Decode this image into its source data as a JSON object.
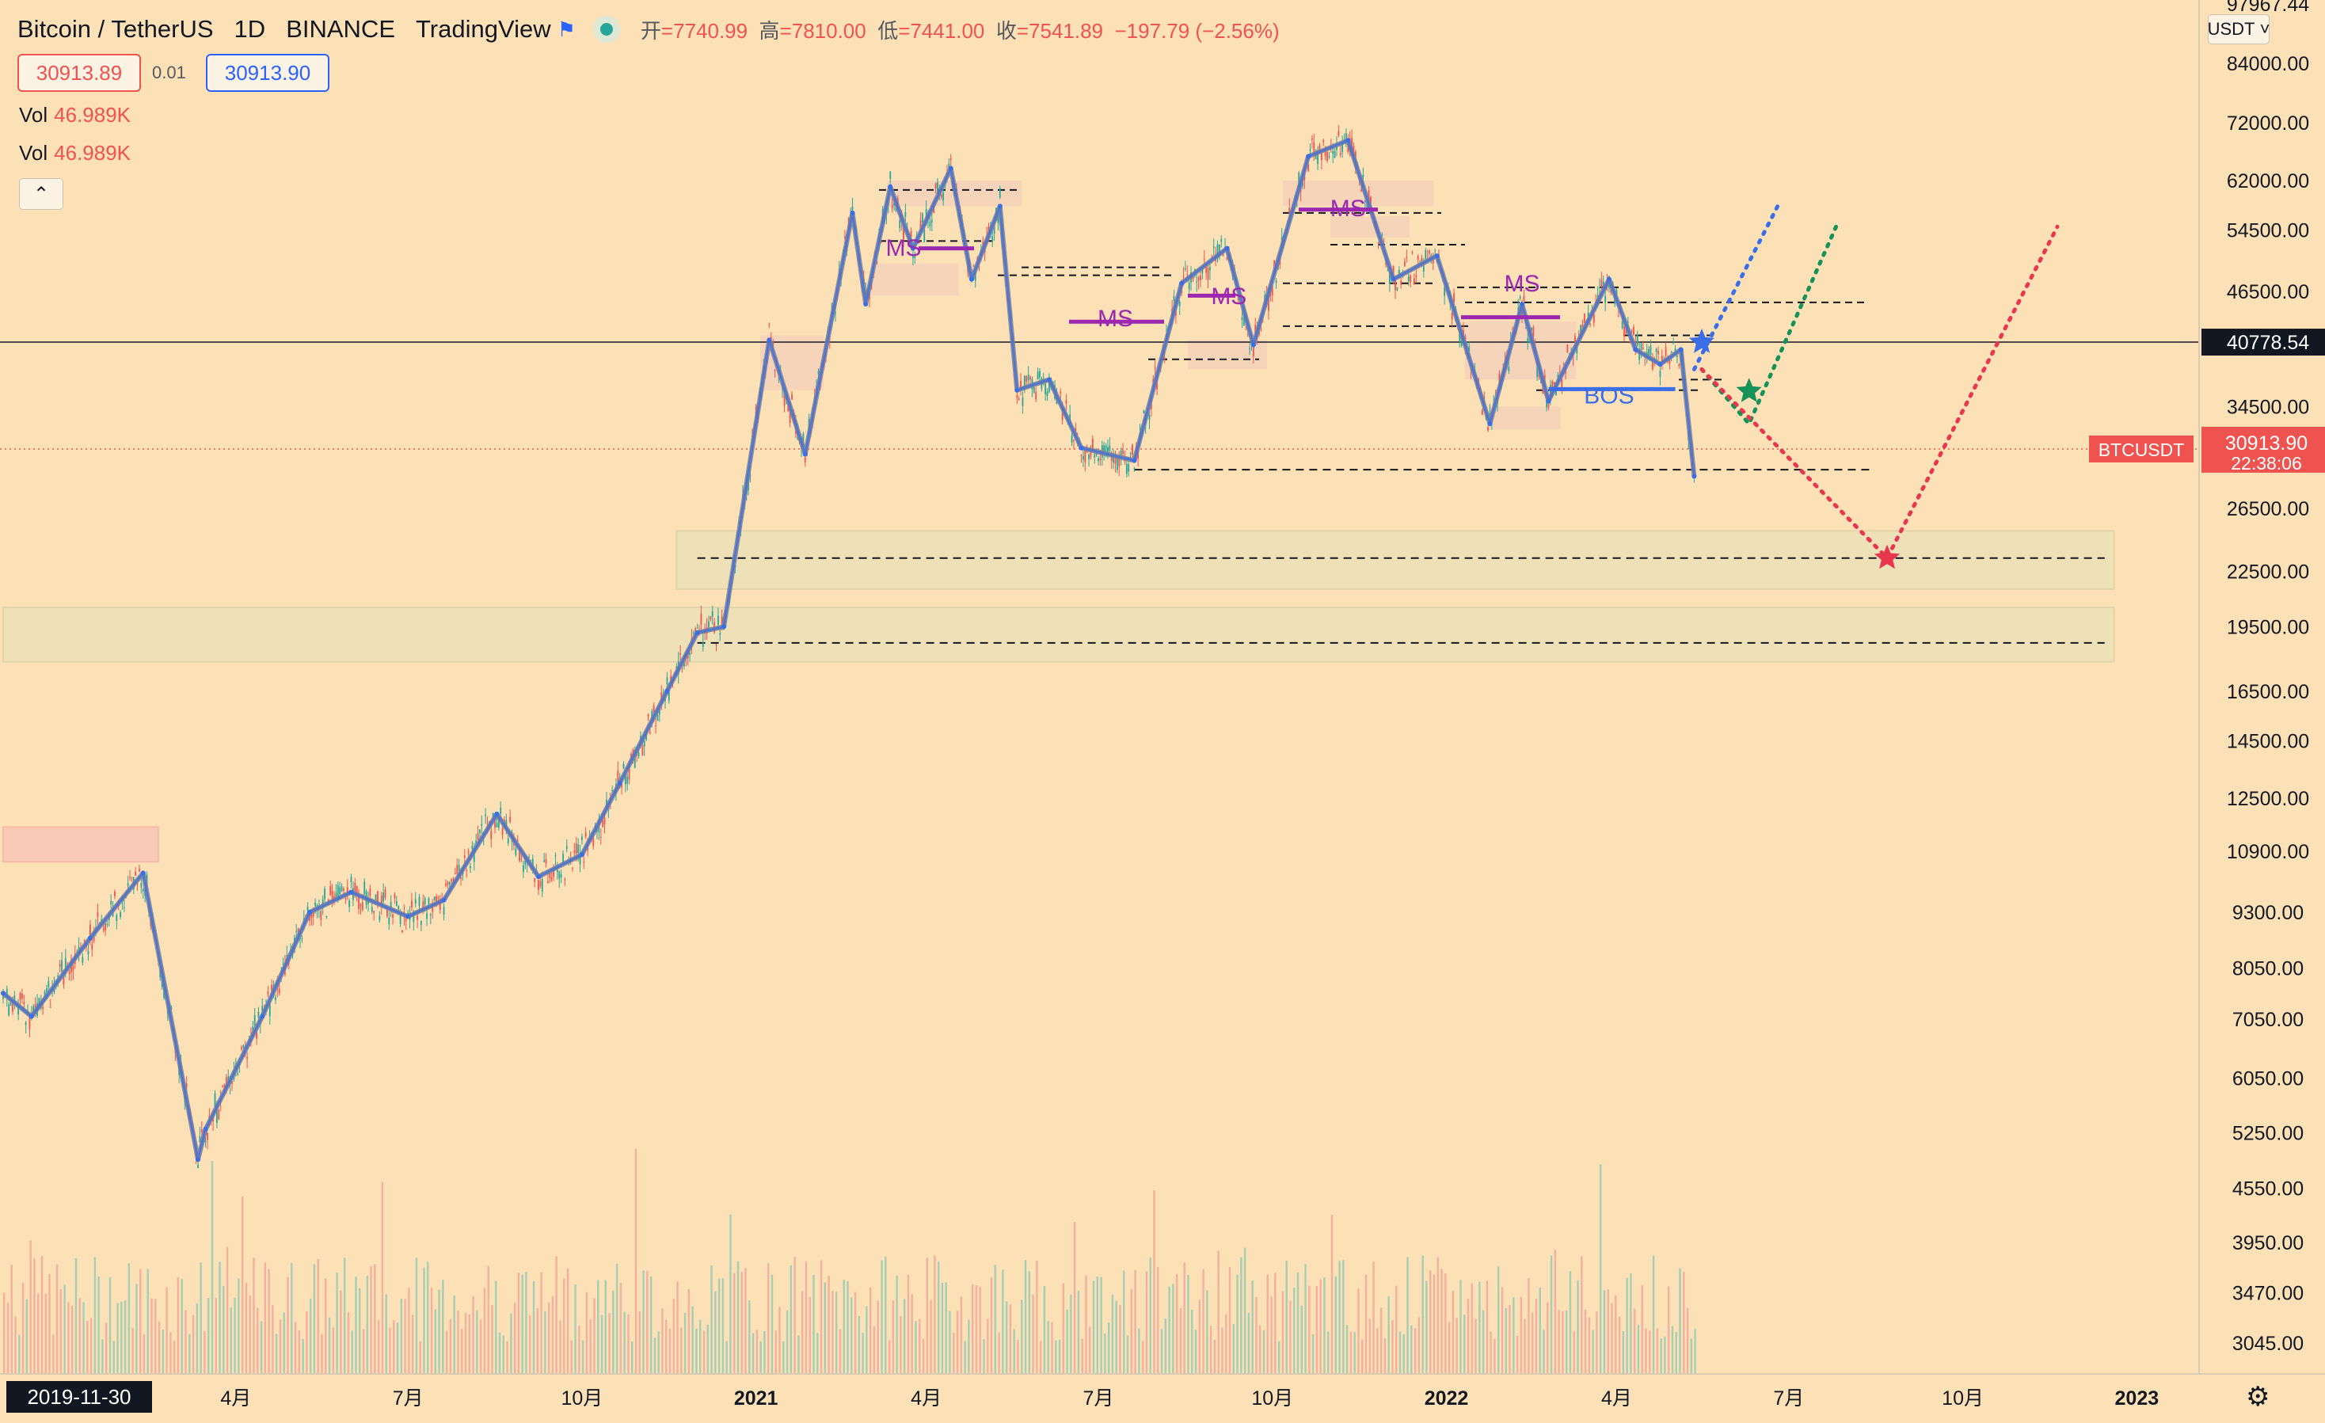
{
  "header": {
    "symbol": "Bitcoin / TetherUS",
    "interval": "1D",
    "exchange": "BINANCE",
    "brand": "TradingView",
    "open_label": "开",
    "open": "=7740.99",
    "high_label": "高",
    "high": "=7810.00",
    "low_label": "低",
    "low": "=7441.00",
    "close_label": "收",
    "close": "=7541.89",
    "change": "−197.79 (−2.56%)"
  },
  "trade": {
    "sell": "30913.89",
    "spread": "0.01",
    "buy": "30913.90"
  },
  "volume_rows": [
    {
      "label": "Vol",
      "value": "46.989K"
    },
    {
      "label": "Vol",
      "value": "46.989K"
    }
  ],
  "controls": {
    "collapse_icon": "chevron-up-icon",
    "currency": "USDT",
    "settings_icon": "gear-icon"
  },
  "axis": {
    "start_date": "2019-11-30",
    "x_ticks": [
      "4月",
      "7月",
      "10月",
      "2021",
      "4月",
      "7月",
      "10月",
      "2022",
      "4月",
      "7月",
      "10月",
      "2023"
    ],
    "y_ticks": [
      84000,
      72000,
      62000,
      54500,
      46500,
      40778.54,
      34500,
      26500,
      22500,
      19500,
      16500,
      14500,
      12500,
      10900,
      9300,
      8050,
      7050,
      6050,
      5250,
      4550,
      3950,
      3470,
      3045
    ],
    "y_tick_labels": [
      "84000.00",
      "72000.00",
      "62000.00",
      "54500.00",
      "46500.00",
      "40778.54",
      "34500.00",
      "26500.00",
      "22500.00",
      "19500.00",
      "16500.00",
      "14500.00",
      "12500.00",
      "10900.00",
      "9300.00",
      "8050.00",
      "7050.00",
      "6050.00",
      "5250.00",
      "4550.00",
      "3950.00",
      "3470.00",
      "3045.00"
    ],
    "top_partial_label": "97967.44"
  },
  "price_tag": {
    "symbol": "BTCUSDT",
    "price": "30913.90",
    "countdown": "22:38:06",
    "crosshair": "40778.54"
  },
  "colors": {
    "bg": "#fde1b6",
    "up": "#26a69a",
    "down": "#ef5350",
    "swing": "#7a7f94",
    "structure": "#3a6ee8",
    "ms": "#9c27b0",
    "projection_blue": "#3a6ee8",
    "projection_green": "#15915a",
    "projection_red": "#e8364f"
  },
  "chart_data": {
    "type": "line",
    "subtype": "candlestick-with-annotations",
    "title": "",
    "y_scale": "log",
    "ylim": [
      2900,
      92000
    ],
    "x_range": [
      "2019-11-30",
      "2023-01-30"
    ],
    "series": [
      {
        "name": "",
        "role": "price_path",
        "x": [
          "2019-11-30",
          "2019-12-15",
          "2020-01-15",
          "2020-02-12",
          "2020-03-12",
          "2020-03-16",
          "2020-04-15",
          "2020-05-10",
          "2020-06-01",
          "2020-07-01",
          "2020-07-20",
          "2020-08-17",
          "2020-09-08",
          "2020-10-01",
          "2020-10-21",
          "2020-11-15",
          "2020-12-01",
          "2020-12-15",
          "2021-01-08",
          "2021-01-27",
          "2021-02-21",
          "2021-02-28",
          "2021-03-13",
          "2021-03-25",
          "2021-04-14",
          "2021-04-25",
          "2021-05-10",
          "2021-05-19",
          "2021-06-05",
          "2021-06-22",
          "2021-07-20",
          "2021-08-14",
          "2021-09-07",
          "2021-09-21",
          "2021-10-20",
          "2021-11-10",
          "2021-12-04",
          "2021-12-27",
          "2022-01-24",
          "2022-02-10",
          "2022-02-24",
          "2022-03-28",
          "2022-04-11",
          "2022-04-24",
          "2022-05-05",
          "2022-05-12"
        ],
        "y": [
          7540,
          7100,
          8700,
          10300,
          4900,
          5300,
          7100,
          9300,
          9800,
          9200,
          9600,
          12000,
          10200,
          10800,
          13000,
          16500,
          19200,
          19500,
          41000,
          30500,
          57000,
          45000,
          61000,
          52000,
          64000,
          48000,
          58000,
          36000,
          37000,
          31000,
          30000,
          47500,
          52000,
          40500,
          66000,
          68800,
          48000,
          51000,
          33000,
          45000,
          35000,
          48000,
          40000,
          38500,
          40000,
          28800
        ]
      },
      {
        "name": "",
        "role": "volume_indicator",
        "note_values_unavailable": true,
        "x": [],
        "y": []
      }
    ],
    "horizontal_levels": [
      {
        "label": "",
        "value": 40778.54,
        "style": "solid-crosshair"
      },
      {
        "label": "BTCUSDT",
        "value": 30913.9,
        "style": "dotted-last-price"
      },
      {
        "label": "",
        "value": 29300,
        "style": "dashed"
      },
      {
        "label": "",
        "value": 23300,
        "style": "dashed-zone"
      },
      {
        "label": "",
        "value": 18700,
        "style": "dashed-zone"
      }
    ],
    "zones": [
      {
        "from_date": "2020-11-20",
        "to_date": "2022-12-20",
        "low": 21500,
        "high": 25000,
        "kind": "demand"
      },
      {
        "from_date": "2019-11-30",
        "to_date": "2022-12-20",
        "low": 17800,
        "high": 20500,
        "kind": "demand"
      },
      {
        "from_date": "2019-11-30",
        "to_date": "2020-02-20",
        "low": 10600,
        "high": 11600,
        "kind": "supply"
      }
    ],
    "annotations": [
      {
        "text": "MS",
        "x": "2021-03-20",
        "y": 51000
      },
      {
        "text": "MS",
        "x": "2021-07-10",
        "y": 42500
      },
      {
        "text": "MS",
        "x": "2021-09-08",
        "y": 45000
      },
      {
        "text": "MS",
        "x": "2021-11-10",
        "y": 56500
      },
      {
        "text": "MS",
        "x": "2022-02-10",
        "y": 46500
      },
      {
        "text": "BOS",
        "x": "2022-03-28",
        "y": 34800
      }
    ],
    "projections": [
      {
        "name": "",
        "x": [
          "2022-05-12",
          "2022-06-26"
        ],
        "y": [
          38000,
          58500
        ]
      },
      {
        "name": "",
        "x": [
          "2022-05-16",
          "2022-06-10",
          "2022-07-26"
        ],
        "y": [
          38000,
          33000,
          55000
        ]
      },
      {
        "name": "",
        "x": [
          "2022-05-16",
          "2022-08-22",
          "2022-11-20"
        ],
        "y": [
          38000,
          23300,
          55000
        ]
      }
    ],
    "markers": [
      {
        "shape": "star",
        "x": "2022-05-16",
        "y": 40778
      },
      {
        "shape": "star",
        "x": "2022-06-10",
        "y": 35900
      },
      {
        "shape": "star",
        "x": "2022-08-22",
        "y": 23300
      }
    ]
  }
}
